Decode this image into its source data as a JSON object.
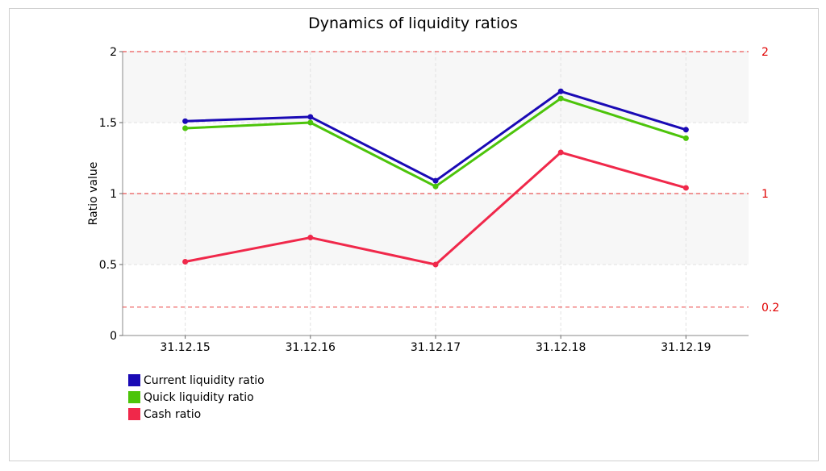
{
  "chart_data": {
    "type": "line",
    "title": "Dynamics of liquidity ratios",
    "ylabel": "Ratio value",
    "xlabel": "",
    "categories": [
      "31.12.15",
      "31.12.16",
      "31.12.17",
      "31.12.18",
      "31.12.19"
    ],
    "ylim": [
      0,
      2
    ],
    "yticks": [
      "0",
      "0.5",
      "1",
      "1.5",
      "2"
    ],
    "reference_lines": [
      {
        "value": 2,
        "label": "2"
      },
      {
        "value": 1,
        "label": "1"
      },
      {
        "value": 0.2,
        "label": "0.2"
      }
    ],
    "series": [
      {
        "name": "Current liquidity ratio",
        "color": "#1a0ab5",
        "values": [
          1.51,
          1.54,
          1.09,
          1.72,
          1.45
        ]
      },
      {
        "name": "Quick liquidity ratio",
        "color": "#4cc40a",
        "values": [
          1.46,
          1.5,
          1.05,
          1.67,
          1.39
        ]
      },
      {
        "name": "Cash ratio",
        "color": "#f0284a",
        "values": [
          0.52,
          0.69,
          0.5,
          1.29,
          1.04
        ]
      }
    ],
    "grid": true,
    "legend_position": "bottom-left",
    "reference_line_color": "#e83030"
  }
}
